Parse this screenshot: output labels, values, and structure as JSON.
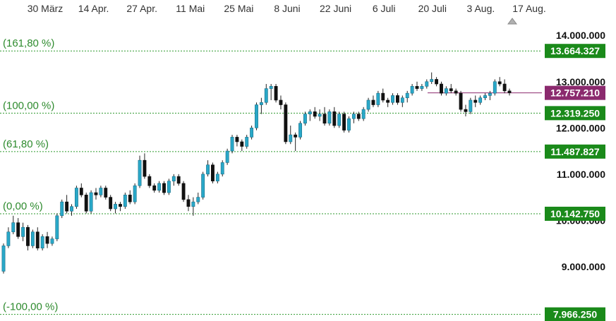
{
  "chart_data": {
    "type": "candlestick",
    "x_labels": [
      "30 März",
      "14 Apr.",
      "27 Apr.",
      "11 Mai",
      "25 Mai",
      "8 Juni",
      "22 Juni",
      "6 Juli",
      "20 Juli",
      "3 Aug.",
      "17 Aug."
    ],
    "y_ticks": [
      {
        "value": 9000000,
        "label": "9.000.000"
      },
      {
        "value": 10000000,
        "label": "10.000.000"
      },
      {
        "value": 11000000,
        "label": "11.000.000"
      },
      {
        "value": 12000000,
        "label": "12.000.000"
      },
      {
        "value": 13000000,
        "label": "13.000.000"
      },
      {
        "value": 14000000,
        "label": "14.000.000"
      }
    ],
    "ylim": [
      7900000,
      14400000
    ],
    "fib_levels": [
      {
        "label": "(161,80 %)",
        "value": 13664327,
        "value_label": "13.664.327",
        "color": "#1a8a1a"
      },
      {
        "label": "(100,00 %)",
        "value": 12319250,
        "value_label": "12.319.250",
        "color": "#1a8a1a"
      },
      {
        "label": "(61,80 %)",
        "value": 11487827,
        "value_label": "11.487.827",
        "color": "#1a8a1a"
      },
      {
        "label": "(0,00 %)",
        "value": 10142750,
        "value_label": "10.142.750",
        "color": "#1a8a1a"
      },
      {
        "label": "(-100,00 %)",
        "value": 7966250,
        "value_label": "7.966.250",
        "color": "#1a8a1a"
      }
    ],
    "current_price": {
      "value": 12757210,
      "value_label": "12.757.210",
      "color": "#8b2a6e"
    },
    "candles": [
      [
        8900000,
        9500000,
        8850000,
        9450000
      ],
      [
        9450000,
        9850000,
        9400000,
        9750000
      ],
      [
        9750000,
        10100000,
        9700000,
        9950000
      ],
      [
        9950000,
        10050000,
        9600000,
        9650000
      ],
      [
        9650000,
        9950000,
        9550000,
        9850000
      ],
      [
        9850000,
        9900000,
        9350000,
        9450000
      ],
      [
        9450000,
        9800000,
        9400000,
        9750000
      ],
      [
        9750000,
        9850000,
        9350000,
        9400000
      ],
      [
        9400000,
        9700000,
        9350000,
        9650000
      ],
      [
        9650000,
        9750000,
        9400000,
        9500000
      ],
      [
        9500000,
        9650000,
        9450000,
        9600000
      ],
      [
        9600000,
        10150000,
        9550000,
        10100000
      ],
      [
        10100000,
        10450000,
        10050000,
        10400000
      ],
      [
        10400000,
        10550000,
        10150000,
        10200000
      ],
      [
        10200000,
        10350000,
        10100000,
        10300000
      ],
      [
        10300000,
        10750000,
        10250000,
        10700000
      ],
      [
        10700000,
        10800000,
        10500000,
        10550000
      ],
      [
        10550000,
        10600000,
        10150000,
        10200000
      ],
      [
        10200000,
        10650000,
        10150000,
        10600000
      ],
      [
        10600000,
        10700000,
        10450000,
        10550000
      ],
      [
        10550000,
        10750000,
        10500000,
        10700000
      ],
      [
        10700000,
        10750000,
        10450000,
        10500000
      ],
      [
        10500000,
        10550000,
        10200000,
        10250000
      ],
      [
        10250000,
        10400000,
        10150000,
        10350000
      ],
      [
        10350000,
        10400000,
        10200000,
        10300000
      ],
      [
        10300000,
        10600000,
        10250000,
        10550000
      ],
      [
        10550000,
        10650000,
        10350000,
        10400000
      ],
      [
        10400000,
        10800000,
        10350000,
        10750000
      ],
      [
        10750000,
        11400000,
        10700000,
        11300000
      ],
      [
        11300000,
        11450000,
        10900000,
        10950000
      ],
      [
        10950000,
        11000000,
        10700000,
        10750000
      ],
      [
        10750000,
        10800000,
        10600000,
        10650000
      ],
      [
        10650000,
        10850000,
        10600000,
        10800000
      ],
      [
        10800000,
        10850000,
        10550000,
        10600000
      ],
      [
        10600000,
        10900000,
        10550000,
        10850000
      ],
      [
        10850000,
        11000000,
        10750000,
        10950000
      ],
      [
        10950000,
        11000000,
        10750000,
        10800000
      ],
      [
        10800000,
        10850000,
        10400000,
        10450000
      ],
      [
        10450000,
        10550000,
        10200000,
        10300000
      ],
      [
        10300000,
        10500000,
        10100000,
        10400000
      ],
      [
        10400000,
        10600000,
        10350000,
        10500000
      ],
      [
        10500000,
        11050000,
        10450000,
        11000000
      ],
      [
        11000000,
        11300000,
        10950000,
        11200000
      ],
      [
        11200000,
        11250000,
        10800000,
        10850000
      ],
      [
        10850000,
        11050000,
        10800000,
        11000000
      ],
      [
        11000000,
        11300000,
        10950000,
        11250000
      ],
      [
        11250000,
        11550000,
        11200000,
        11500000
      ],
      [
        11500000,
        11850000,
        11450000,
        11800000
      ],
      [
        11800000,
        11850000,
        11600000,
        11700000
      ],
      [
        11700000,
        11750000,
        11500000,
        11600000
      ],
      [
        11600000,
        11850000,
        11550000,
        11800000
      ],
      [
        11800000,
        12050000,
        11750000,
        12000000
      ],
      [
        12000000,
        12550000,
        11950000,
        12500000
      ],
      [
        12500000,
        12650000,
        12300000,
        12550000
      ],
      [
        12550000,
        12950000,
        12500000,
        12850000
      ],
      [
        12850000,
        12950000,
        12600000,
        12900000
      ],
      [
        12900000,
        12950000,
        12550000,
        12600000
      ],
      [
        12600000,
        12700000,
        12400000,
        12500000
      ],
      [
        12500000,
        12550000,
        11650000,
        11700000
      ],
      [
        11700000,
        12050000,
        11650000,
        11850000
      ],
      [
        11850000,
        11900000,
        11500000,
        11800000
      ],
      [
        11800000,
        12150000,
        11750000,
        12100000
      ],
      [
        12100000,
        12350000,
        12050000,
        12300000
      ],
      [
        12300000,
        12400000,
        12150000,
        12350000
      ],
      [
        12350000,
        12450000,
        12200000,
        12250000
      ],
      [
        12250000,
        12400000,
        12150000,
        12300000
      ],
      [
        12300000,
        12450000,
        12050000,
        12100000
      ],
      [
        12100000,
        12400000,
        12050000,
        12350000
      ],
      [
        12350000,
        12450000,
        12000000,
        12050000
      ],
      [
        12050000,
        12350000,
        12000000,
        12300000
      ],
      [
        12300000,
        12350000,
        11900000,
        11950000
      ],
      [
        11950000,
        12250000,
        11900000,
        12200000
      ],
      [
        12200000,
        12350000,
        12100000,
        12300000
      ],
      [
        12300000,
        12350000,
        12150000,
        12200000
      ],
      [
        12200000,
        12450000,
        12150000,
        12400000
      ],
      [
        12400000,
        12650000,
        12350000,
        12600000
      ],
      [
        12600000,
        12700000,
        12450000,
        12500000
      ],
      [
        12500000,
        12800000,
        12450000,
        12750000
      ],
      [
        12750000,
        12850000,
        12550000,
        12600000
      ],
      [
        12600000,
        12650000,
        12450000,
        12550000
      ],
      [
        12550000,
        12750000,
        12500000,
        12700000
      ],
      [
        12700000,
        12750000,
        12500000,
        12550000
      ],
      [
        12550000,
        12700000,
        12450000,
        12650000
      ],
      [
        12650000,
        12800000,
        12550000,
        12750000
      ],
      [
        12750000,
        12950000,
        12700000,
        12900000
      ],
      [
        12900000,
        13000000,
        12800000,
        12850000
      ],
      [
        12850000,
        12950000,
        12800000,
        12900000
      ],
      [
        12900000,
        13050000,
        12850000,
        13000000
      ],
      [
        13000000,
        13200000,
        12950000,
        13050000
      ],
      [
        13050000,
        13100000,
        12900000,
        12950000
      ],
      [
        12950000,
        13000000,
        12700000,
        12750000
      ],
      [
        12750000,
        12900000,
        12700000,
        12850000
      ],
      [
        12850000,
        12950000,
        12750000,
        12800000
      ],
      [
        12800000,
        12850000,
        12700000,
        12750000
      ],
      [
        12750000,
        12800000,
        12350000,
        12400000
      ],
      [
        12400000,
        12500000,
        12250000,
        12350000
      ],
      [
        12350000,
        12650000,
        12300000,
        12600000
      ],
      [
        12600000,
        12700000,
        12450000,
        12550000
      ],
      [
        12550000,
        12700000,
        12500000,
        12650000
      ],
      [
        12650000,
        12750000,
        12600000,
        12700000
      ],
      [
        12700000,
        12800000,
        12600000,
        12750000
      ],
      [
        12750000,
        13050000,
        12700000,
        13000000
      ],
      [
        13000000,
        13100000,
        12900000,
        12950000
      ],
      [
        12950000,
        13050000,
        12750000,
        12800000
      ],
      [
        12800000,
        12850000,
        12700000,
        12757210
      ]
    ],
    "colors": {
      "up": "#29a8c8",
      "down": "#111111",
      "grid": "#2e9a2e"
    }
  }
}
